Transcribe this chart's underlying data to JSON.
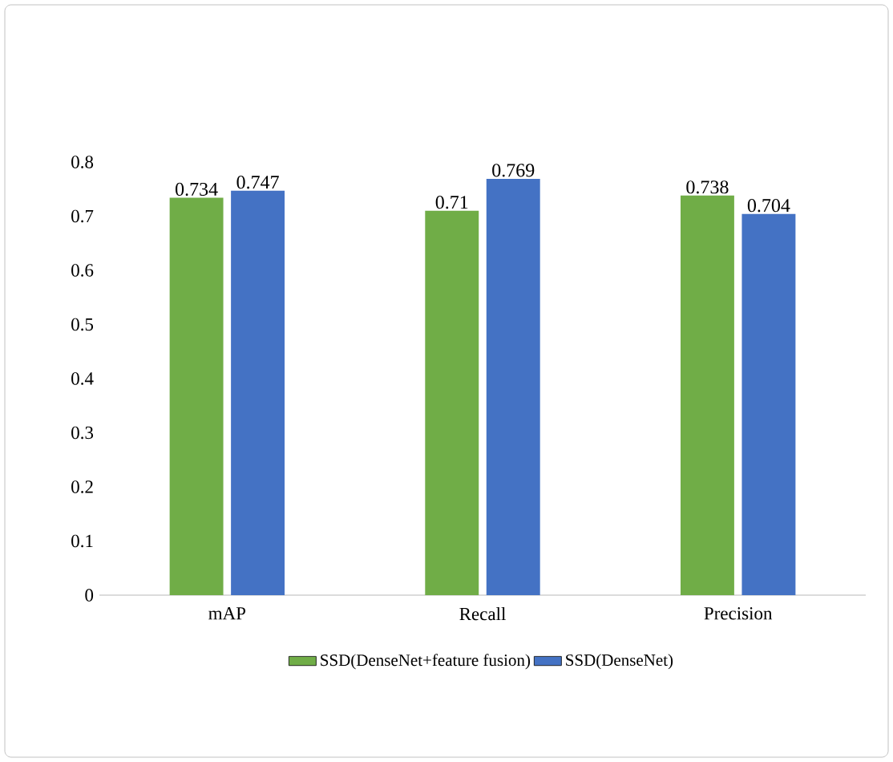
{
  "chart_data": {
    "type": "bar",
    "categories": [
      "mAP",
      "Recall",
      "Precision"
    ],
    "series": [
      {
        "name": "SSD(DenseNet+feature fusion)",
        "color": "#70ad47",
        "values": [
          0.734,
          0.71,
          0.738
        ]
      },
      {
        "name": "SSD(DenseNet)",
        "color": "#4472c4",
        "values": [
          0.747,
          0.769,
          0.704
        ]
      }
    ],
    "ylim": [
      0,
      0.8
    ],
    "yticks": [
      0,
      0.1,
      0.2,
      0.3,
      0.4,
      0.5,
      0.6,
      0.7,
      0.8
    ],
    "data_labels": true,
    "legend": "bottom",
    "grid": false
  }
}
